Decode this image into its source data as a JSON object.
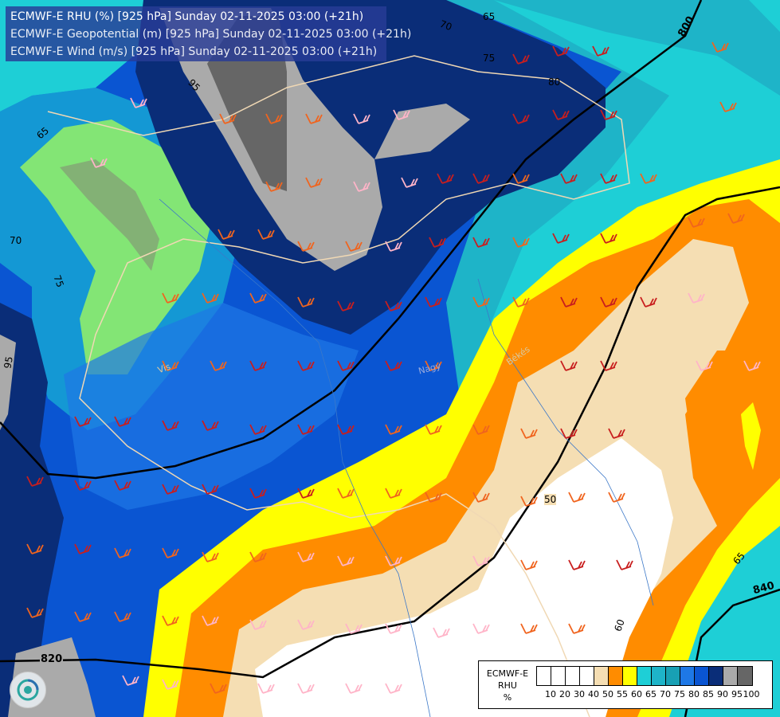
{
  "title_lines": [
    "ECMWF-E RHU (%) [925 hPa] Sunday 02-11-2025 03:00 (+21h)",
    "ECMWF-E Geopotential (m) [925 hPa] Sunday 02-11-2025 03:00 (+21h)",
    "ECMWF-E Wind (m/s) [925 hPa] Sunday 02-11-2025 03:00 (+21h)"
  ],
  "legend": {
    "title_lines": [
      "ECMWF-E",
      "RHU",
      "%"
    ],
    "tick_labels": [
      "10",
      "20",
      "30",
      "40",
      "50",
      "55",
      "60",
      "65",
      "70",
      "75",
      "80",
      "85",
      "90",
      "95",
      "100"
    ],
    "colors": [
      "#ffffff",
      "#ffffff",
      "#ffffff",
      "#ffffff",
      "#f5deb3",
      "#ff8c00",
      "#ffff00",
      "#1ecfd6",
      "#1eb4c8",
      "#18a0b4",
      "#1e78e6",
      "#0a55d2",
      "#0a2d78",
      "#aaaaaa",
      "#666666"
    ]
  },
  "geopotential_contours": [
    {
      "label": "800"
    },
    {
      "label": "820"
    },
    {
      "label": "840"
    }
  ],
  "rhu_contour_labels": [
    "65",
    "70",
    "75",
    "80",
    "95",
    "65",
    "70",
    "75",
    "95",
    "50",
    "60",
    "65"
  ],
  "place_labels": [
    "Békés",
    "Nagy",
    "Vis"
  ],
  "map_colors": {
    "orange": "#ff8c00",
    "yellow": "#ffff00",
    "cyan_light": "#1ecfd6",
    "cyan_mid": "#1eb4c8",
    "blue": "#1e78e6",
    "blue_dark": "#0a55d2",
    "navy": "#0a2d78",
    "gray": "#aaaaaa",
    "gray_dark": "#666666",
    "wheat": "#f5deb3",
    "white": "#ffffff",
    "wind_barb_red": "#c81e1e",
    "wind_barb_orange": "#f0641e",
    "wind_barb_pink": "#ffb4c8"
  }
}
